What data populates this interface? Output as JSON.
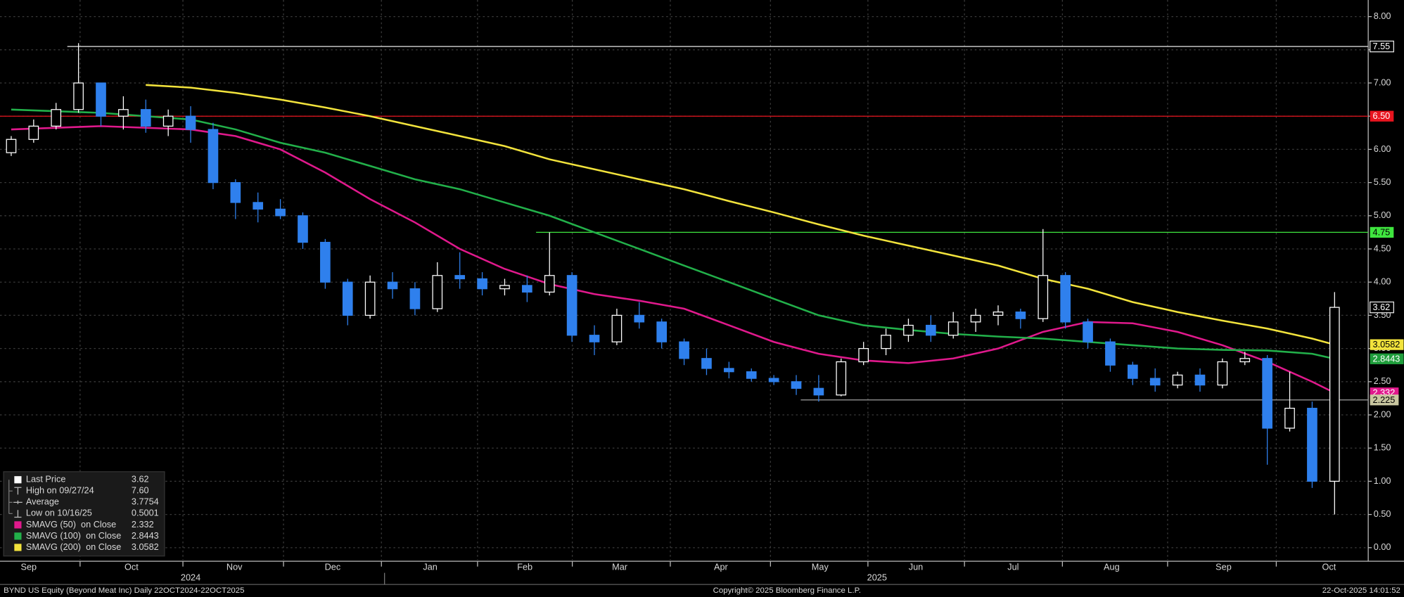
{
  "chart_data": {
    "type": "candlestick",
    "xlim": [
      -0.5,
      60.5
    ],
    "ylim": [
      -0.15,
      8.25
    ],
    "yticks": [
      {
        "value": 0,
        "label": "0.00"
      },
      {
        "value": 0.5,
        "label": "0.50"
      },
      {
        "value": 1,
        "label": "1.00"
      },
      {
        "value": 1.5,
        "label": "1.50"
      },
      {
        "value": 2,
        "label": "2.00"
      },
      {
        "value": 2.5,
        "label": "2.50"
      },
      {
        "value": 3,
        "label": "3.00"
      },
      {
        "value": 3.5,
        "label": "3.50"
      },
      {
        "value": 4,
        "label": "4.00"
      },
      {
        "value": 4.5,
        "label": "4.50"
      },
      {
        "value": 5,
        "label": "5.00"
      },
      {
        "value": 5.5,
        "label": "5.50"
      },
      {
        "value": 6,
        "label": "6.00"
      },
      {
        "value": 6.5,
        "label": "6.50"
      },
      {
        "value": 7,
        "label": "7.00"
      },
      {
        "value": 7.5,
        "label": "7.50"
      },
      {
        "value": 8,
        "label": "8.00"
      }
    ],
    "xticks": [
      {
        "value": 0.78,
        "label": "Sep"
      },
      {
        "value": 5.36,
        "label": "Oct"
      },
      {
        "value": 9.95,
        "label": "Nov"
      },
      {
        "value": 14.33,
        "label": "Dec"
      },
      {
        "value": 18.68,
        "label": "Jan"
      },
      {
        "value": 22.9,
        "label": "Feb"
      },
      {
        "value": 27.13,
        "label": "Mar"
      },
      {
        "value": 31.64,
        "label": "Apr"
      },
      {
        "value": 36.06,
        "label": "May"
      },
      {
        "value": 40.33,
        "label": "Jun"
      },
      {
        "value": 44.67,
        "label": "Jul"
      },
      {
        "value": 49.06,
        "label": "Aug"
      },
      {
        "value": 54.05,
        "label": "Sep"
      },
      {
        "value": 58.75,
        "label": "Oct"
      }
    ],
    "year_ticks": [
      {
        "value": 8.0,
        "label": "2024"
      },
      {
        "value": 38.6,
        "label": "2025"
      }
    ],
    "grid": true,
    "up_color": "#ffffff",
    "down_color": "#2f80ed",
    "candles": {
      "open": [
        5.95,
        6.15,
        6.35,
        6.6,
        7.0,
        6.5,
        6.6,
        6.35,
        6.5,
        6.3,
        5.5,
        5.2,
        5.1,
        5.0,
        4.6,
        4.0,
        3.5,
        4.0,
        3.9,
        3.6,
        4.1,
        4.05,
        3.9,
        3.95,
        3.85,
        4.1,
        3.2,
        3.1,
        3.5,
        3.4,
        3.1,
        2.85,
        2.7,
        2.65,
        2.55,
        2.5,
        2.4,
        2.3,
        2.8,
        3.0,
        3.2,
        3.35,
        3.2,
        3.4,
        3.5,
        3.55,
        3.45,
        4.1,
        3.4,
        3.1,
        2.75,
        2.55,
        2.45,
        2.6,
        2.45,
        2.8,
        2.85,
        1.8,
        2.1,
        1.0
      ],
      "high": [
        6.2,
        6.45,
        6.7,
        7.6,
        7.0,
        6.8,
        6.75,
        6.6,
        6.65,
        6.4,
        5.55,
        5.35,
        5.25,
        5.05,
        4.65,
        4.05,
        4.1,
        4.15,
        4.0,
        4.3,
        4.45,
        4.15,
        4.05,
        4.1,
        4.75,
        4.15,
        3.35,
        3.6,
        3.7,
        3.45,
        3.15,
        3.0,
        2.8,
        2.7,
        2.6,
        2.6,
        2.6,
        2.85,
        3.1,
        3.3,
        3.45,
        3.5,
        3.55,
        3.6,
        3.65,
        3.6,
        4.8,
        4.15,
        3.45,
        3.15,
        2.8,
        2.7,
        2.65,
        2.7,
        2.85,
        2.95,
        2.9,
        2.65,
        2.2,
        3.85
      ],
      "low": [
        5.9,
        6.1,
        6.3,
        6.55,
        6.35,
        6.3,
        6.25,
        6.2,
        6.1,
        5.4,
        4.95,
        4.9,
        4.95,
        4.5,
        3.9,
        3.35,
        3.45,
        3.75,
        3.5,
        3.55,
        3.9,
        3.8,
        3.8,
        3.7,
        3.8,
        3.1,
        2.9,
        3.05,
        3.3,
        3.0,
        2.75,
        2.6,
        2.55,
        2.5,
        2.45,
        2.3,
        2.2,
        2.28,
        2.75,
        2.9,
        3.1,
        3.1,
        3.15,
        3.25,
        3.35,
        3.3,
        3.4,
        3.3,
        3.0,
        2.65,
        2.45,
        2.35,
        2.4,
        2.35,
        2.4,
        2.75,
        1.25,
        1.75,
        0.9,
        0.5
      ],
      "close": [
        6.15,
        6.35,
        6.6,
        7.0,
        6.5,
        6.6,
        6.35,
        6.5,
        6.3,
        5.5,
        5.2,
        5.1,
        5.0,
        4.6,
        4.0,
        3.5,
        4.0,
        3.9,
        3.6,
        4.1,
        4.05,
        3.9,
        3.95,
        3.85,
        4.1,
        3.2,
        3.1,
        3.5,
        3.4,
        3.1,
        2.85,
        2.7,
        2.65,
        2.55,
        2.5,
        2.4,
        2.3,
        2.8,
        3.0,
        3.2,
        3.35,
        3.2,
        3.4,
        3.5,
        3.55,
        3.45,
        4.1,
        3.4,
        3.1,
        2.75,
        2.55,
        2.45,
        2.6,
        2.45,
        2.8,
        2.85,
        1.8,
        2.1,
        1.0,
        3.62
      ]
    },
    "series": [
      {
        "name": "SMAVG (50)  on Close",
        "legend_value": "2.332",
        "color": "#e0198c",
        "x": [
          0,
          4,
          8,
          10,
          12,
          14,
          16,
          18,
          20,
          22,
          24,
          26,
          28,
          30,
          32,
          34,
          36,
          38,
          40,
          42,
          44,
          46,
          48,
          50,
          52,
          54,
          56,
          58,
          59
        ],
        "values": [
          6.3,
          6.35,
          6.3,
          6.2,
          6.0,
          5.65,
          5.25,
          4.9,
          4.5,
          4.2,
          3.97,
          3.82,
          3.72,
          3.6,
          3.35,
          3.1,
          2.92,
          2.82,
          2.78,
          2.85,
          3.0,
          3.25,
          3.4,
          3.38,
          3.25,
          3.05,
          2.8,
          2.5,
          2.332
        ]
      },
      {
        "name": "SMAVG (100)  on Close",
        "legend_value": "2.8443",
        "color": "#22b04a",
        "x": [
          0,
          4,
          8,
          10,
          12,
          14,
          16,
          18,
          20,
          22,
          24,
          26,
          28,
          30,
          32,
          34,
          36,
          38,
          40,
          42,
          44,
          46,
          48,
          50,
          52,
          54,
          56,
          58,
          59
        ],
        "values": [
          6.6,
          6.55,
          6.45,
          6.3,
          6.1,
          5.95,
          5.75,
          5.55,
          5.4,
          5.2,
          5.0,
          4.75,
          4.5,
          4.25,
          4.0,
          3.75,
          3.5,
          3.35,
          3.28,
          3.22,
          3.18,
          3.15,
          3.1,
          3.05,
          3.0,
          2.98,
          2.97,
          2.92,
          2.8443
        ]
      },
      {
        "name": "SMAVG (200)  on Close",
        "legend_value": "3.0582",
        "color": "#f2e33c",
        "x": [
          6,
          8,
          10,
          12,
          14,
          16,
          18,
          20,
          22,
          24,
          26,
          28,
          30,
          32,
          34,
          36,
          38,
          40,
          42,
          44,
          46,
          48,
          50,
          52,
          54,
          56,
          58,
          59
        ],
        "values": [
          6.97,
          6.93,
          6.85,
          6.75,
          6.63,
          6.5,
          6.35,
          6.2,
          6.05,
          5.85,
          5.7,
          5.55,
          5.4,
          5.22,
          5.05,
          4.87,
          4.7,
          4.55,
          4.4,
          4.25,
          4.05,
          3.9,
          3.7,
          3.55,
          3.42,
          3.3,
          3.15,
          3.0582
        ]
      }
    ],
    "levels": [
      {
        "value": 7.55,
        "color": "#000000",
        "line_color": "#e8e8e8",
        "from": 2.5
      },
      {
        "value": 6.5,
        "label": "6.50",
        "color": "#e8141e",
        "line_color": "#e8141e"
      },
      {
        "value": 4.75,
        "color": "#3fe63f",
        "line_color": "#3fe63f",
        "from": 23.4
      },
      {
        "value": 3.62,
        "color": "#000000"
      },
      {
        "value": 3.0582,
        "color": "#f2e33c"
      },
      {
        "value": 2.8443,
        "color": "#1f9e3c"
      },
      {
        "value": 2.332,
        "color": "#e0198c"
      },
      {
        "value": 2.225,
        "color": "#c9c7a0",
        "line_color": "#a0a0a0",
        "from": 35.2
      }
    ],
    "legend_items": [
      {
        "label": "Last Price",
        "value": "3.62"
      },
      {
        "label": "High on 09/27/24",
        "value": "7.60"
      },
      {
        "label": "Average",
        "value": "3.7754"
      },
      {
        "label": "Low on 10/16/25",
        "value": "0.5001"
      }
    ],
    "footer": {
      "left": "BYND US Equity (Beyond Meat Inc) Daily 22OCT2024-22OCT2025",
      "center": "Copyright© 2025 Bloomberg Finance L.P.",
      "right": "22-Oct-2025 14:01:52"
    }
  }
}
